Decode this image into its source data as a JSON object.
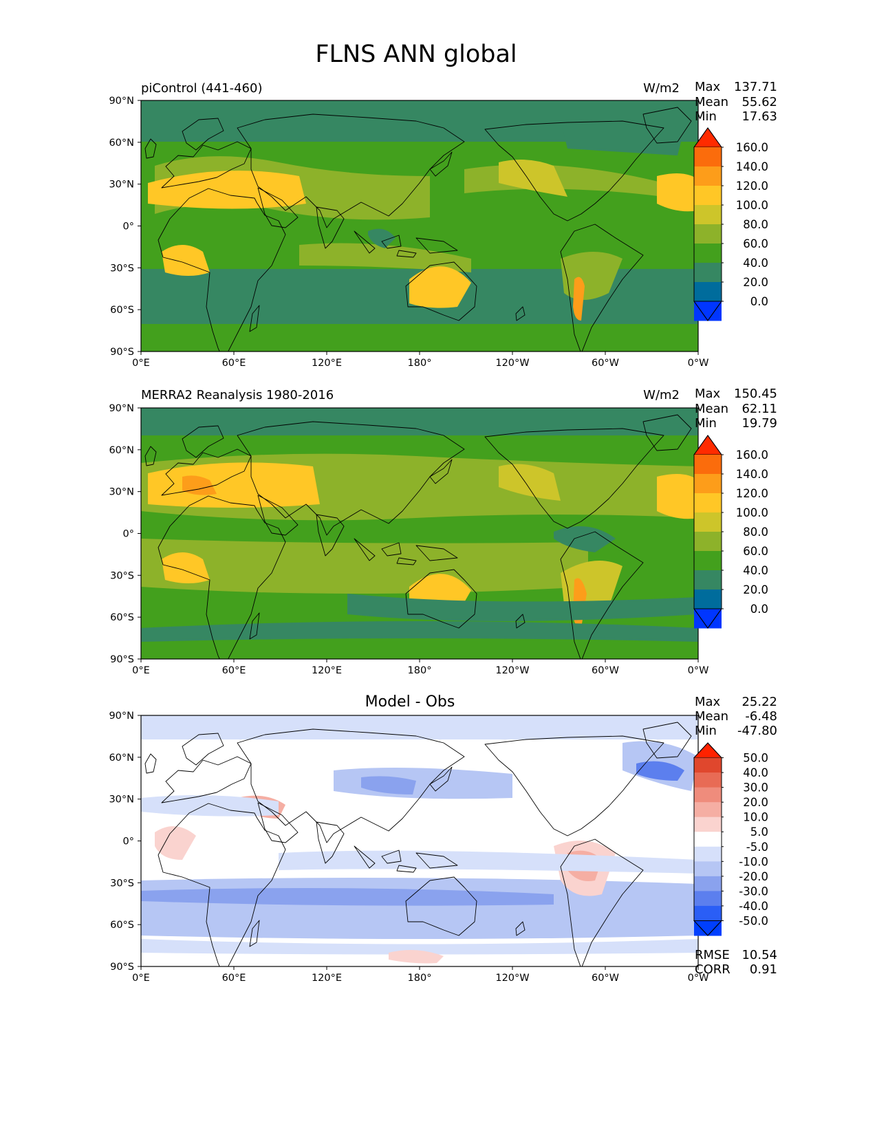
{
  "figure_title": "FLNS ANN global",
  "colors": {
    "levels": [
      "#0036ff",
      "#006c9c",
      "#368762",
      "#43a01d",
      "#8db22a",
      "#cdc52a",
      "#ffc726",
      "#fd9d1a",
      "#fb6c0c",
      "#ff2b00"
    ],
    "diff_levels": [
      "#003fff",
      "#2a5ef6",
      "#5c7fee",
      "#8aa2ee",
      "#b6c6f4",
      "#d6e0fa",
      "#ffffff",
      "#fad3cf",
      "#f5aea3",
      "#ef8c7c",
      "#e86b55",
      "#e0472d",
      "#ff2200"
    ]
  },
  "chart_data": [
    {
      "type": "heatmap",
      "title": "piControl (441-460)",
      "units": "W/m2",
      "stats": [
        {
          "label": "Max",
          "value": "137.71"
        },
        {
          "label": "Mean",
          "value": "55.62"
        },
        {
          "label": "Min",
          "value": "17.63"
        }
      ],
      "xticks": [
        "0°E",
        "60°E",
        "120°E",
        "180°",
        "120°W",
        "60°W",
        "0°W"
      ],
      "yticks": [
        "90°N",
        "60°N",
        "30°N",
        "0°",
        "30°S",
        "60°S",
        "90°S"
      ],
      "xlim": [
        0,
        360
      ],
      "ylim": [
        -90,
        90
      ],
      "colorbar": {
        "labels": [
          "160.0",
          "140.0",
          "120.0",
          "100.0",
          "80.0",
          "60.0",
          "40.0",
          "20.0",
          "0.0"
        ],
        "extend": "both"
      }
    },
    {
      "type": "heatmap",
      "title": "MERRA2 Reanalysis 1980-2016",
      "units": "W/m2",
      "stats": [
        {
          "label": "Max",
          "value": "150.45"
        },
        {
          "label": "Mean",
          "value": "62.11"
        },
        {
          "label": "Min",
          "value": "19.79"
        }
      ],
      "xticks": [
        "0°E",
        "60°E",
        "120°E",
        "180°",
        "120°W",
        "60°W",
        "0°W"
      ],
      "yticks": [
        "90°N",
        "60°N",
        "30°N",
        "0°",
        "30°S",
        "60°S",
        "90°S"
      ],
      "xlim": [
        0,
        360
      ],
      "ylim": [
        -90,
        90
      ],
      "colorbar": {
        "labels": [
          "160.0",
          "140.0",
          "120.0",
          "100.0",
          "80.0",
          "60.0",
          "40.0",
          "20.0",
          "0.0"
        ],
        "extend": "both"
      }
    },
    {
      "type": "heatmap",
      "title": "Model - Obs",
      "stats": [
        {
          "label": "Max",
          "value": "25.22"
        },
        {
          "label": "Mean",
          "value": "-6.48"
        },
        {
          "label": "Min",
          "value": "-47.80"
        }
      ],
      "metrics": [
        {
          "label": "RMSE",
          "value": "10.54"
        },
        {
          "label": "CORR",
          "value": "0.91"
        }
      ],
      "xticks": [
        "0°E",
        "60°E",
        "120°E",
        "180°",
        "120°W",
        "60°W",
        "0°W"
      ],
      "yticks": [
        "90°N",
        "60°N",
        "30°N",
        "0°",
        "30°S",
        "60°S",
        "90°S"
      ],
      "xlim": [
        0,
        360
      ],
      "ylim": [
        -90,
        90
      ],
      "colorbar": {
        "labels": [
          "50.0",
          "40.0",
          "30.0",
          "20.0",
          "10.0",
          "5.0",
          "-5.0",
          "-10.0",
          "-20.0",
          "-30.0",
          "-40.0",
          "-50.0"
        ],
        "extend": "both"
      }
    }
  ]
}
